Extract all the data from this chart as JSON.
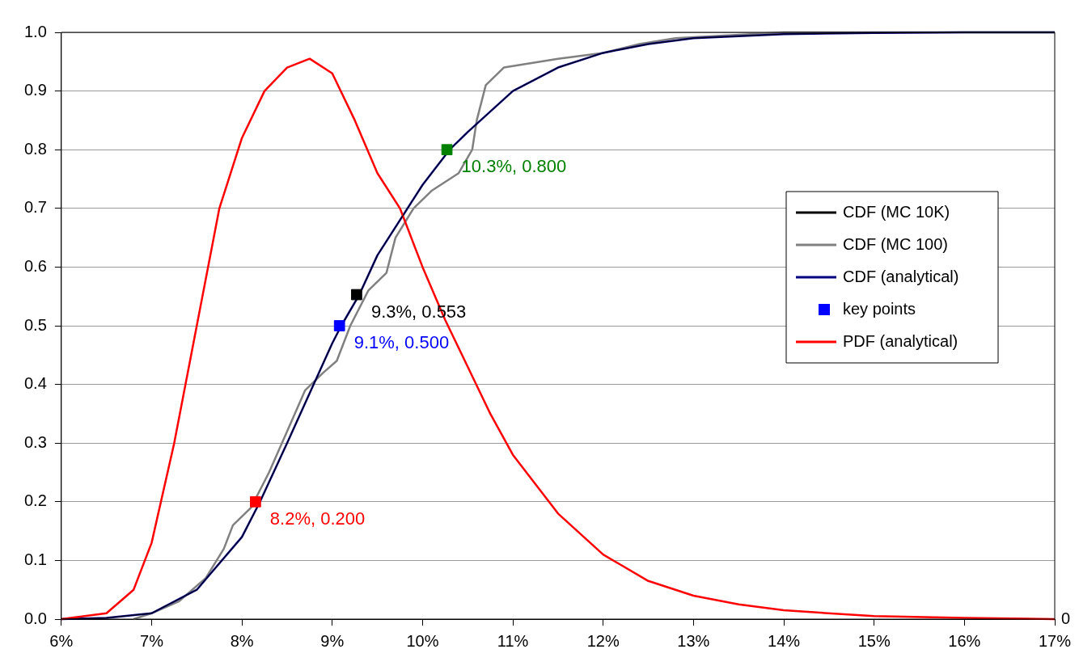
{
  "chart_data": {
    "type": "line",
    "xlim": [
      6,
      17
    ],
    "ylim": [
      0,
      1
    ],
    "annotations": [
      "0"
    ],
    "xticks": [
      {
        "value": 6,
        "label": "6%"
      },
      {
        "value": 7,
        "label": "7%"
      },
      {
        "value": 8,
        "label": "8%"
      },
      {
        "value": 9,
        "label": "9%"
      },
      {
        "value": 10,
        "label": "10%"
      },
      {
        "value": 11,
        "label": "11%"
      },
      {
        "value": 12,
        "label": "12%"
      },
      {
        "value": 13,
        "label": "13%"
      },
      {
        "value": 14,
        "label": "14%"
      },
      {
        "value": 15,
        "label": "15%"
      },
      {
        "value": 16,
        "label": "16%"
      },
      {
        "value": 17,
        "label": "17%"
      }
    ],
    "yticks": [
      {
        "value": 0,
        "label": "0.0"
      },
      {
        "value": 0.1,
        "label": "0.1"
      },
      {
        "value": 0.2,
        "label": "0.2"
      },
      {
        "value": 0.3,
        "label": "0.3"
      },
      {
        "value": 0.4,
        "label": "0.4"
      },
      {
        "value": 0.5,
        "label": "0.5"
      },
      {
        "value": 0.6,
        "label": "0.6"
      },
      {
        "value": 0.7,
        "label": "0.7"
      },
      {
        "value": 0.8,
        "label": "0.8"
      },
      {
        "value": 0.9,
        "label": "0.9"
      },
      {
        "value": 1,
        "label": "1.0"
      }
    ],
    "grid": "y",
    "legend": "right",
    "marker": "none",
    "line_style": "solid",
    "series": [
      {
        "name": "CDF (MC 10K)",
        "color": "#000000",
        "x": [
          6,
          6.5,
          7,
          7.5,
          8,
          8.2,
          8.5,
          9,
          9.1,
          9.3,
          9.5,
          10,
          10.3,
          10.5,
          11,
          11.5,
          12,
          12.5,
          13,
          14,
          15,
          16,
          17
        ],
        "values": [
          0,
          0.002,
          0.01,
          0.05,
          0.14,
          0.2,
          0.3,
          0.47,
          0.5,
          0.553,
          0.62,
          0.74,
          0.8,
          0.83,
          0.9,
          0.94,
          0.965,
          0.98,
          0.99,
          0.997,
          0.999,
          1,
          1
        ]
      },
      {
        "name": "CDF (MC 100)",
        "color": "#808080",
        "x": [
          6.8,
          7,
          7.3,
          7.6,
          7.8,
          7.9,
          8.1,
          8.3,
          8.5,
          8.7,
          8.9,
          9.05,
          9.2,
          9.4,
          9.6,
          9.7,
          9.9,
          10.1,
          10.4,
          10.55,
          10.6,
          10.7,
          10.9,
          11.5,
          12,
          12.4,
          12.8,
          14,
          17
        ],
        "values": [
          0,
          0.01,
          0.03,
          0.07,
          0.12,
          0.16,
          0.19,
          0.25,
          0.32,
          0.39,
          0.42,
          0.44,
          0.5,
          0.56,
          0.59,
          0.65,
          0.7,
          0.73,
          0.76,
          0.8,
          0.85,
          0.91,
          0.94,
          0.955,
          0.965,
          0.98,
          0.99,
          1,
          1
        ]
      },
      {
        "name": "CDF (analytical)",
        "color": "#000080",
        "x": [
          6,
          6.5,
          7,
          7.5,
          8,
          8.2,
          8.5,
          9,
          9.1,
          9.3,
          9.5,
          10,
          10.3,
          10.5,
          11,
          11.5,
          12,
          12.5,
          13,
          14,
          15,
          16,
          17
        ],
        "values": [
          0,
          0.002,
          0.01,
          0.05,
          0.14,
          0.2,
          0.3,
          0.47,
          0.5,
          0.553,
          0.62,
          0.74,
          0.8,
          0.83,
          0.9,
          0.94,
          0.965,
          0.98,
          0.99,
          0.997,
          0.999,
          1,
          1
        ]
      },
      {
        "name": "key points",
        "type": "scatter",
        "marker": "square",
        "color": "#0000ff",
        "colors": [
          "#ff0000",
          "#0000ff",
          "#000000",
          "#008000"
        ],
        "x": [
          8.15,
          9.08,
          9.27,
          10.27
        ],
        "values": [
          0.2,
          0.5,
          0.553,
          0.8
        ],
        "value_labels": [
          "8.2%, 0.200",
          "9.1%, 0.500",
          "9.3%, 0.553",
          "10.3%, 0.800"
        ]
      },
      {
        "name": "PDF (analytical)",
        "color": "#ff0000",
        "x": [
          6,
          6.5,
          6.8,
          7,
          7.25,
          7.5,
          7.75,
          8,
          8.25,
          8.5,
          8.75,
          9,
          9.25,
          9.5,
          9.75,
          10,
          10.25,
          10.5,
          10.75,
          11,
          11.5,
          12,
          12.5,
          13,
          13.5,
          14,
          15,
          16,
          17
        ],
        "values": [
          0,
          0.01,
          0.05,
          0.13,
          0.3,
          0.5,
          0.7,
          0.82,
          0.9,
          0.94,
          0.955,
          0.93,
          0.85,
          0.76,
          0.7,
          0.6,
          0.51,
          0.43,
          0.35,
          0.28,
          0.18,
          0.11,
          0.065,
          0.04,
          0.025,
          0.015,
          0.005,
          0.002,
          0
        ]
      }
    ]
  }
}
